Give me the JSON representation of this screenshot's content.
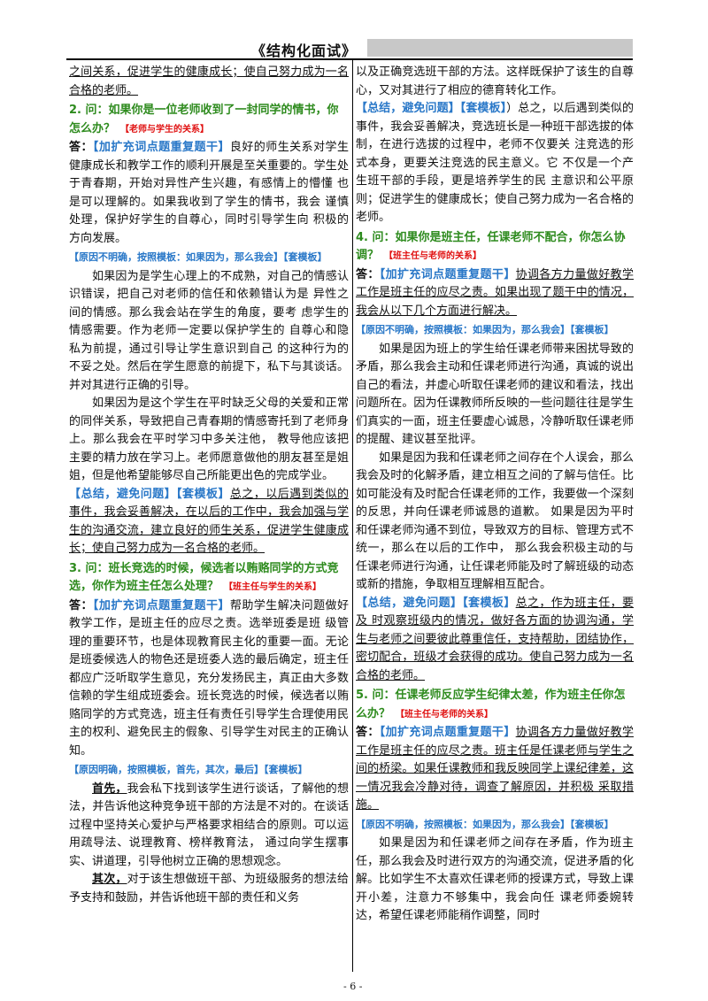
{
  "header": {
    "title": "《结构化面试》"
  },
  "footer": {
    "page": "- 6 -"
  },
  "left": {
    "top_cont": "之间关系，促进学生的健康成长；使自己努力成为一名合格的老师。",
    "q2": {
      "text": "2. 问：如果你是一位老师收到了一封同学的情书，你怎么办？",
      "tag": "【老师与学生的关系】"
    },
    "a2_label": "答：",
    "a2_tag": "【加扩充词点题重复题干】",
    "a2_p1": "良好的师生关系对学生健康成长和教学工作的顺利开展是至关重要的。学生处于青春期，开始对异性产生兴趣，有感情上的懵懂 也是可以理解的。如果我收到了学生的情书，我会 谨慎处理，保护好学生的自尊心，同时引导学生向 积极的方向发展。",
    "a2_blue": "【原因不明确，按照模板：如果因为，那么我会】【套模板】",
    "a2_p2": "如果因为是学生心理上的不成熟，对自己的情感认识错误，把自己对老师的信任和依赖错认为是 异性之间的情感。那么我会站在学生的角度，要考 虑学生的情感需要。作为老师一定要以保护学生的 自尊心和隐私为前提，通过引导让学生意识到自己 的这种行为的不妥之处。然后在学生愿意的前提下，私下与其谈话。并对其进行正确的引导。",
    "a2_p3": "如果因为是这个学生在平时缺乏父母的关爱和正常的同伴关系，导致把自己青春期的情感寄托到了老师身上。那么我会在平时学习中多关注他， 教导他应该把主要的精力放在学习上。老师愿意做他的朋友甚至是姐姐，但是他希望能够尽自己所能更出色的完成学业。",
    "a2_sum_blue": "【总结，避免问题】【套模板】",
    "a2_sum": "总之，以后遇到类似的事件，我会妥善解决，在以后的工作中，我会加强与学生的沟通交流，建立良好的师生关系，促进学生健康成长；使自己努力成为一名合格的老师。",
    "q3": {
      "text": "3. 问：班长竞选的时候，候选者以贿赂同学的方式竞选，你作为班主任怎么处理？",
      "tag": "【班主任与学生的关系】"
    },
    "a3_label": "答：",
    "a3_tag": "【加扩充词点题重复题干】",
    "a3_p1": "帮助学生解决问题做好教学工作，是班主任的应尽之责。选举班委是班 级管理的重要环节，也是体现教育民主化的重要一面。无论是班委候选人的物色还是班委人选的最后确定，班主任都应广泛听取学生意见，充分发扬民主，真正由大多数信赖的学生组成班委会。班长竞选的时候，候选者以贿赂同学的方式竞选，班主任有责任引导学生合理使用民主的权利、避免民主的假象、引导学生对民主的正确认知。",
    "a3_blue": "【原因明确，按照模板，首先，其次，最后】【套模板】",
    "a3_p2_lead": "首先，",
    "a3_p2": "我会私下找到该学生进行谈话，了解他的想法，并告诉他这种竞争班干部的方法是不对的。在谈话过程中坚持关心爱护与严格要求相结合的原则。可以运用疏导法、说理教育、榜样教育法， 通过向学生摆事实、讲道理，引导他树立正确的思想观念。",
    "a3_p3_lead": "其次，",
    "a3_p3": "对于该生想做班干部、为班级服务的想法给予支持和鼓励，并告诉他班干部的责任和义务"
  },
  "right": {
    "top_cont": "以及正确竞选班干部的方法。这样既保护了该生的自尊心，又对其进行了相应的德育转化工作。",
    "a3_sum_blue": "【总结，避免问题】【套模板】",
    "a3_sum": "）总之，以后遇到类似的事件，我会妥善解决，竞选班长是一种班干部选拔的体制，在进行选拔的过程中，老师不仅要关 注竞选的形式本身，更要关注竞选的民主意义。它 不仅是一个产生班干部的手段，更是培养学生的民 主意识和公平原则；促进学生的健康成长；使自己努力成为一名合格的老师。",
    "q4": {
      "text": "4. 问：如果你是班主任，任课老师不配合，你怎么协调？",
      "tag": "【班主任与老师的关系】"
    },
    "a4_label": "答：",
    "a4_tag": "【加扩充词点题重复题干】",
    "a4_p1": "协调各方力量做好教学工作是班主任的应尽之责。如果出现了题干中的情况，我会从以下几个方面进行解决。",
    "a4_blue": "【原因不明确，按照模板：如果因为，那么我会】【套模板】",
    "a4_p2": "如果是因为班上的学生给任课老师带来困扰导致的矛盾，那么我会主动和任课老师进行沟通，真诚的说出自己的看法，并虚心听取任课老师的建议和看法，找出问题所在。因为任课教师所反映的一些问题往往是学生们真实的一面，班主任要虚心诚恳，冷静听取任课老师的提醒、建议甚至批评。",
    "a4_p3": "如果是因为我和任课老师之间存在个人误会，那么我会及时的化解矛盾，建立相互之间的了解与信任。比如可能没有及时配合任课老师的工作，我要做一个深刻的反思，并向任课老师诚恳的道歉。 如果是因为平时和任课老师沟通不到位，导致双方的目标、管理方式不统一，那么在以后的工作中， 那么我会积极主动的与任课老师进行沟通，让任课老师能及时了解班级的动态或新的措施，争取相互理解相互配合。",
    "a4_sum_blue": "【总结，避免问题】【套模板】",
    "a4_sum": "总之，作为班主任，要及 时观察班级内的情况，做好各方面的协调沟通，学生与老师之间要彼此尊重信任，支持帮助，团结协作，密切配合，班级才会获得的成功。使自己努力成为一名合格的老师。",
    "q5": {
      "text": "5. 问：任课老师反应学生纪律太差，作为班主任你怎么办？",
      "tag": "【班主任与老师的关系】"
    },
    "a5_label": "答：",
    "a5_tag": "【加扩充词点题重复题干】",
    "a5_p1": "协调各方力量做好教学工作是班主任的应尽之责。班主任是任课老师与学生之间的桥梁。如果任课教师和我反映同学上课纪律差，这一情况我会冷静对待，调查了解原因，并积极 采取措施。",
    "a5_blue": "【原因不明确，按照模板：如果因为，那么我会】【套模板】",
    "a5_p2": "如果是因为和任课老师之间存在矛盾，作为班主任，那么我会及时进行双方的沟通交流，促进矛盾的化解。比如学生不太喜欢任课老师的授课方式，导致上课开小差，注意力不够集中，我会向任 课老师委婉转达，希望任课老师能稍作调整，同时"
  }
}
